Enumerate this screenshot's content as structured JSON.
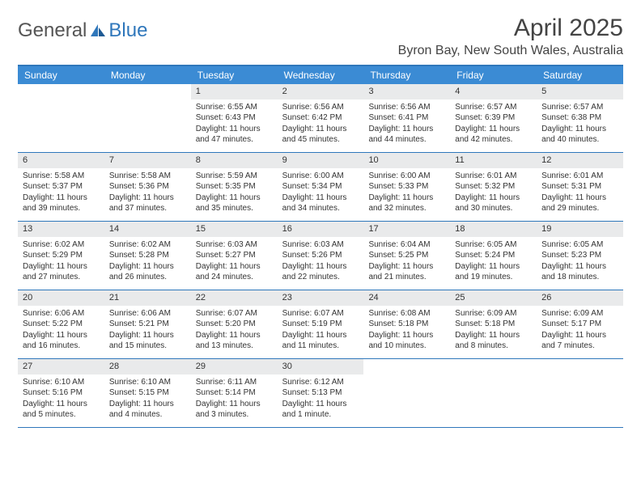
{
  "brand": {
    "part1": "General",
    "part2": "Blue"
  },
  "title": "April 2025",
  "location": "Byron Bay, New South Wales, Australia",
  "colors": {
    "header_bg": "#3b8bd4",
    "header_text": "#ffffff",
    "border": "#2f77bb",
    "daynum_bg": "#e9eaeb",
    "text": "#333333",
    "logo_gray": "#555555",
    "logo_blue": "#2f77bb",
    "page_bg": "#ffffff"
  },
  "day_headers": [
    "Sunday",
    "Monday",
    "Tuesday",
    "Wednesday",
    "Thursday",
    "Friday",
    "Saturday"
  ],
  "weeks": [
    [
      {
        "empty": true
      },
      {
        "empty": true
      },
      {
        "num": "1",
        "sunrise": "Sunrise: 6:55 AM",
        "sunset": "Sunset: 6:43 PM",
        "daylight": "Daylight: 11 hours and 47 minutes."
      },
      {
        "num": "2",
        "sunrise": "Sunrise: 6:56 AM",
        "sunset": "Sunset: 6:42 PM",
        "daylight": "Daylight: 11 hours and 45 minutes."
      },
      {
        "num": "3",
        "sunrise": "Sunrise: 6:56 AM",
        "sunset": "Sunset: 6:41 PM",
        "daylight": "Daylight: 11 hours and 44 minutes."
      },
      {
        "num": "4",
        "sunrise": "Sunrise: 6:57 AM",
        "sunset": "Sunset: 6:39 PM",
        "daylight": "Daylight: 11 hours and 42 minutes."
      },
      {
        "num": "5",
        "sunrise": "Sunrise: 6:57 AM",
        "sunset": "Sunset: 6:38 PM",
        "daylight": "Daylight: 11 hours and 40 minutes."
      }
    ],
    [
      {
        "num": "6",
        "sunrise": "Sunrise: 5:58 AM",
        "sunset": "Sunset: 5:37 PM",
        "daylight": "Daylight: 11 hours and 39 minutes."
      },
      {
        "num": "7",
        "sunrise": "Sunrise: 5:58 AM",
        "sunset": "Sunset: 5:36 PM",
        "daylight": "Daylight: 11 hours and 37 minutes."
      },
      {
        "num": "8",
        "sunrise": "Sunrise: 5:59 AM",
        "sunset": "Sunset: 5:35 PM",
        "daylight": "Daylight: 11 hours and 35 minutes."
      },
      {
        "num": "9",
        "sunrise": "Sunrise: 6:00 AM",
        "sunset": "Sunset: 5:34 PM",
        "daylight": "Daylight: 11 hours and 34 minutes."
      },
      {
        "num": "10",
        "sunrise": "Sunrise: 6:00 AM",
        "sunset": "Sunset: 5:33 PM",
        "daylight": "Daylight: 11 hours and 32 minutes."
      },
      {
        "num": "11",
        "sunrise": "Sunrise: 6:01 AM",
        "sunset": "Sunset: 5:32 PM",
        "daylight": "Daylight: 11 hours and 30 minutes."
      },
      {
        "num": "12",
        "sunrise": "Sunrise: 6:01 AM",
        "sunset": "Sunset: 5:31 PM",
        "daylight": "Daylight: 11 hours and 29 minutes."
      }
    ],
    [
      {
        "num": "13",
        "sunrise": "Sunrise: 6:02 AM",
        "sunset": "Sunset: 5:29 PM",
        "daylight": "Daylight: 11 hours and 27 minutes."
      },
      {
        "num": "14",
        "sunrise": "Sunrise: 6:02 AM",
        "sunset": "Sunset: 5:28 PM",
        "daylight": "Daylight: 11 hours and 26 minutes."
      },
      {
        "num": "15",
        "sunrise": "Sunrise: 6:03 AM",
        "sunset": "Sunset: 5:27 PM",
        "daylight": "Daylight: 11 hours and 24 minutes."
      },
      {
        "num": "16",
        "sunrise": "Sunrise: 6:03 AM",
        "sunset": "Sunset: 5:26 PM",
        "daylight": "Daylight: 11 hours and 22 minutes."
      },
      {
        "num": "17",
        "sunrise": "Sunrise: 6:04 AM",
        "sunset": "Sunset: 5:25 PM",
        "daylight": "Daylight: 11 hours and 21 minutes."
      },
      {
        "num": "18",
        "sunrise": "Sunrise: 6:05 AM",
        "sunset": "Sunset: 5:24 PM",
        "daylight": "Daylight: 11 hours and 19 minutes."
      },
      {
        "num": "19",
        "sunrise": "Sunrise: 6:05 AM",
        "sunset": "Sunset: 5:23 PM",
        "daylight": "Daylight: 11 hours and 18 minutes."
      }
    ],
    [
      {
        "num": "20",
        "sunrise": "Sunrise: 6:06 AM",
        "sunset": "Sunset: 5:22 PM",
        "daylight": "Daylight: 11 hours and 16 minutes."
      },
      {
        "num": "21",
        "sunrise": "Sunrise: 6:06 AM",
        "sunset": "Sunset: 5:21 PM",
        "daylight": "Daylight: 11 hours and 15 minutes."
      },
      {
        "num": "22",
        "sunrise": "Sunrise: 6:07 AM",
        "sunset": "Sunset: 5:20 PM",
        "daylight": "Daylight: 11 hours and 13 minutes."
      },
      {
        "num": "23",
        "sunrise": "Sunrise: 6:07 AM",
        "sunset": "Sunset: 5:19 PM",
        "daylight": "Daylight: 11 hours and 11 minutes."
      },
      {
        "num": "24",
        "sunrise": "Sunrise: 6:08 AM",
        "sunset": "Sunset: 5:18 PM",
        "daylight": "Daylight: 11 hours and 10 minutes."
      },
      {
        "num": "25",
        "sunrise": "Sunrise: 6:09 AM",
        "sunset": "Sunset: 5:18 PM",
        "daylight": "Daylight: 11 hours and 8 minutes."
      },
      {
        "num": "26",
        "sunrise": "Sunrise: 6:09 AM",
        "sunset": "Sunset: 5:17 PM",
        "daylight": "Daylight: 11 hours and 7 minutes."
      }
    ],
    [
      {
        "num": "27",
        "sunrise": "Sunrise: 6:10 AM",
        "sunset": "Sunset: 5:16 PM",
        "daylight": "Daylight: 11 hours and 5 minutes."
      },
      {
        "num": "28",
        "sunrise": "Sunrise: 6:10 AM",
        "sunset": "Sunset: 5:15 PM",
        "daylight": "Daylight: 11 hours and 4 minutes."
      },
      {
        "num": "29",
        "sunrise": "Sunrise: 6:11 AM",
        "sunset": "Sunset: 5:14 PM",
        "daylight": "Daylight: 11 hours and 3 minutes."
      },
      {
        "num": "30",
        "sunrise": "Sunrise: 6:12 AM",
        "sunset": "Sunset: 5:13 PM",
        "daylight": "Daylight: 11 hours and 1 minute."
      },
      {
        "empty": true
      },
      {
        "empty": true
      },
      {
        "empty": true
      }
    ]
  ]
}
